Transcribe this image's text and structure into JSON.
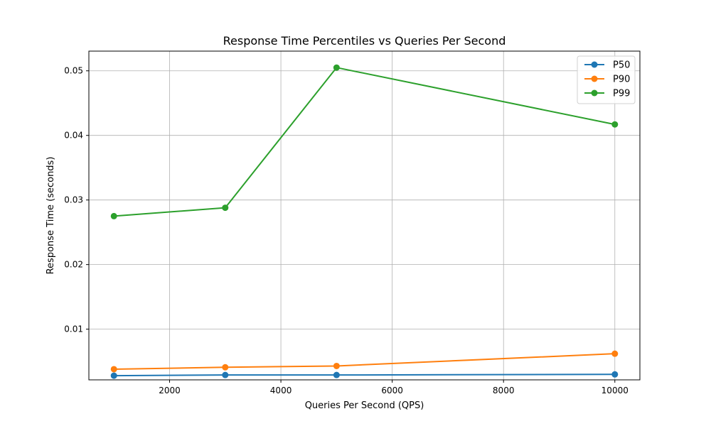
{
  "chart_data": {
    "type": "line",
    "title": "Response Time Percentiles vs Queries Per Second",
    "xlabel": "Queries Per Second (QPS)",
    "ylabel": "Response Time (seconds)",
    "x": [
      1000,
      3000,
      5000,
      10000
    ],
    "xlim": [
      550,
      10450
    ],
    "ylim": [
      0.00215,
      0.05305
    ],
    "xticks": [
      2000,
      4000,
      6000,
      8000,
      10000
    ],
    "yticks": [
      0.01,
      0.02,
      0.03,
      0.04,
      0.05
    ],
    "xtick_labels": [
      "2000",
      "4000",
      "6000",
      "8000",
      "10000"
    ],
    "ytick_labels": [
      "0.01",
      "0.02",
      "0.03",
      "0.04",
      "0.05"
    ],
    "grid": true,
    "legend_position": "top-right",
    "series": [
      {
        "name": "P50",
        "color": "#1f77b4",
        "marker": "circle",
        "values": [
          0.0028,
          0.0029,
          0.0029,
          0.003
        ]
      },
      {
        "name": "P90",
        "color": "#ff7f0e",
        "marker": "circle",
        "values": [
          0.0038,
          0.0041,
          0.0043,
          0.0062
        ]
      },
      {
        "name": "P99",
        "color": "#2ca02c",
        "marker": "circle",
        "values": [
          0.0275,
          0.0288,
          0.0505,
          0.0417
        ]
      }
    ]
  }
}
